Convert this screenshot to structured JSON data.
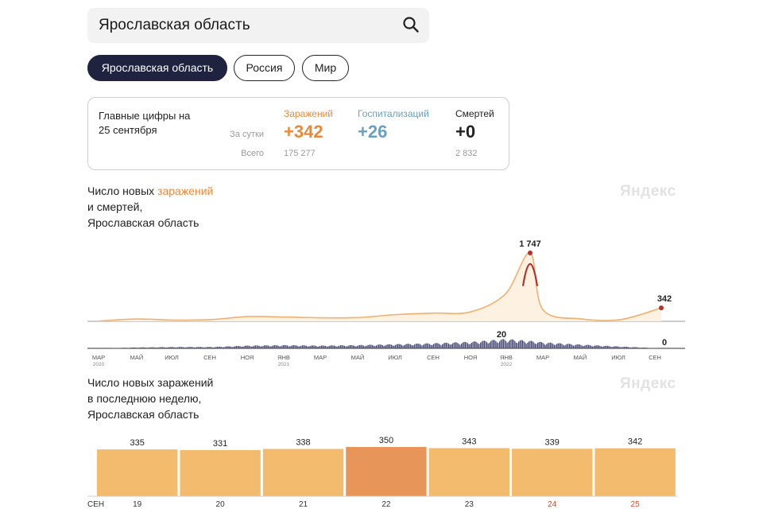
{
  "search": {
    "value": "Ярославская область"
  },
  "region_tabs": [
    {
      "label": "Ярославская область",
      "active": true
    },
    {
      "label": "Россия",
      "active": false
    },
    {
      "label": "Мир",
      "active": false
    }
  ],
  "stats": {
    "caption_line1": "Главные цифры на",
    "caption_line2": "25 сентября",
    "row_daily": "За сутки",
    "row_total": "Всего",
    "infections": {
      "label": "Заражений",
      "daily": "+342",
      "total": "175 277",
      "color": "#e8893a"
    },
    "hospitalizations": {
      "label": "Госпитализаций",
      "daily": "+26",
      "color": "#6aa0bf"
    },
    "deaths": {
      "label": "Смертей",
      "daily": "+0",
      "total": "2 832",
      "color": "#222222"
    }
  },
  "timeline_chart": {
    "title_part1": "Число новых ",
    "title_accent": "заражений",
    "title_line2": "и смертей,",
    "title_line3": "Ярославская область",
    "watermark": "Яндекс",
    "peak_label": "1 747",
    "last_label": "342",
    "deaths_peak_label": "20",
    "deaths_last_label": "0",
    "x_ticks": [
      {
        "label": "МАР",
        "year": "2020"
      },
      {
        "label": "МАЙ"
      },
      {
        "label": "ИЮЛ"
      },
      {
        "label": "СЕН"
      },
      {
        "label": "НОЯ"
      },
      {
        "label": "ЯНВ",
        "year": "2021"
      },
      {
        "label": "МАР"
      },
      {
        "label": "МАЙ"
      },
      {
        "label": "ИЮЛ"
      },
      {
        "label": "СЕН"
      },
      {
        "label": "НОЯ"
      },
      {
        "label": "ЯНВ",
        "year": "2022"
      },
      {
        "label": "МАР"
      },
      {
        "label": "МАЙ"
      },
      {
        "label": "ИЮЛ"
      },
      {
        "label": "СЕН"
      }
    ]
  },
  "weekly_chart": {
    "title_line1": "Число новых заражений",
    "title_line2": "в последнюю неделю,",
    "title_line3": "Ярославская область",
    "watermark": "Яндекс",
    "month_label": "СЕН"
  },
  "chart_data": [
    {
      "type": "area",
      "x": [
        "2020-03",
        "2020-05",
        "2020-07",
        "2020-09",
        "2020-11",
        "2021-01",
        "2021-03",
        "2021-05",
        "2021-07",
        "2021-09",
        "2021-11",
        "2022-01",
        "2022-02",
        "2022-03",
        "2022-05",
        "2022-07",
        "2022-09"
      ],
      "series": [
        {
          "values": [
            5,
            60,
            30,
            45,
            120,
            110,
            90,
            95,
            170,
            210,
            240,
            700,
            1747,
            300,
            60,
            40,
            342
          ],
          "color": "#f0b070"
        },
        {
          "values": [
            0,
            2,
            3,
            3,
            6,
            7,
            6,
            7,
            9,
            11,
            14,
            20,
            16,
            13,
            8,
            4,
            0
          ],
          "color": "#4a4e7a"
        }
      ],
      "annotations": [
        {
          "value": 1747,
          "label": "1 747"
        },
        {
          "value": 342,
          "label": "342"
        },
        {
          "value": 20,
          "label": "20"
        },
        {
          "value": 0,
          "label": "0"
        }
      ],
      "legend": "none"
    },
    {
      "type": "bar",
      "categories": [
        "19",
        "20",
        "21",
        "22",
        "23",
        "24",
        "25"
      ],
      "values": [
        335,
        331,
        338,
        350,
        343,
        339,
        342
      ],
      "highlight_index": 3,
      "weekend_indices": [
        5,
        6
      ],
      "bar_color": "#f2bb6e",
      "highlight_color": "#e8955a",
      "weekend_label_color": "#d94a2a"
    }
  ]
}
